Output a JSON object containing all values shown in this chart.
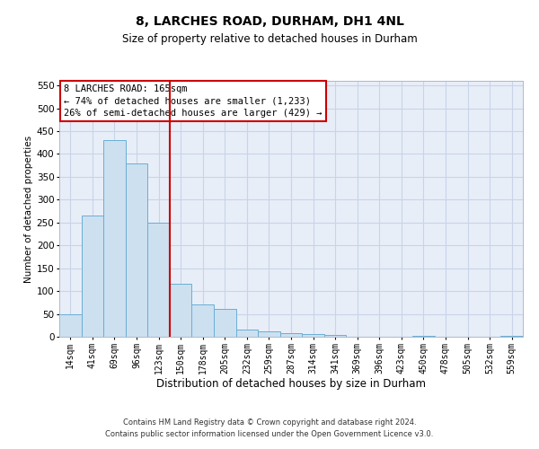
{
  "title1": "8, LARCHES ROAD, DURHAM, DH1 4NL",
  "title2": "Size of property relative to detached houses in Durham",
  "xlabel": "Distribution of detached houses by size in Durham",
  "ylabel": "Number of detached properties",
  "footer1": "Contains HM Land Registry data © Crown copyright and database right 2024.",
  "footer2": "Contains public sector information licensed under the Open Government Licence v3.0.",
  "annotation_line1": "8 LARCHES ROAD: 165sqm",
  "annotation_line2": "← 74% of detached houses are smaller (1,233)",
  "annotation_line3": "26% of semi-detached houses are larger (429) →",
  "bar_labels": [
    "14sqm",
    "41sqm",
    "69sqm",
    "96sqm",
    "123sqm",
    "150sqm",
    "178sqm",
    "205sqm",
    "232sqm",
    "259sqm",
    "287sqm",
    "314sqm",
    "341sqm",
    "369sqm",
    "396sqm",
    "423sqm",
    "450sqm",
    "478sqm",
    "505sqm",
    "532sqm",
    "559sqm"
  ],
  "bar_values": [
    50,
    265,
    430,
    380,
    250,
    115,
    70,
    60,
    15,
    12,
    8,
    5,
    3,
    0,
    0,
    0,
    2,
    0,
    0,
    0,
    1
  ],
  "bar_color": "#cce0f0",
  "bar_edge_color": "#6aaed6",
  "vline_index": 4.5,
  "vline_color": "#cc0000",
  "ylim_max": 560,
  "yticks": [
    0,
    50,
    100,
    150,
    200,
    250,
    300,
    350,
    400,
    450,
    500,
    550
  ],
  "plot_bg_color": "#e8eef8",
  "grid_color": "#c8d4e8",
  "title1_fontsize": 10,
  "title2_fontsize": 8.5,
  "ylabel_fontsize": 7.5,
  "xlabel_fontsize": 8.5,
  "tick_fontsize": 7,
  "ytick_fontsize": 7.5,
  "footer_fontsize": 6,
  "ann_fontsize": 7.5
}
